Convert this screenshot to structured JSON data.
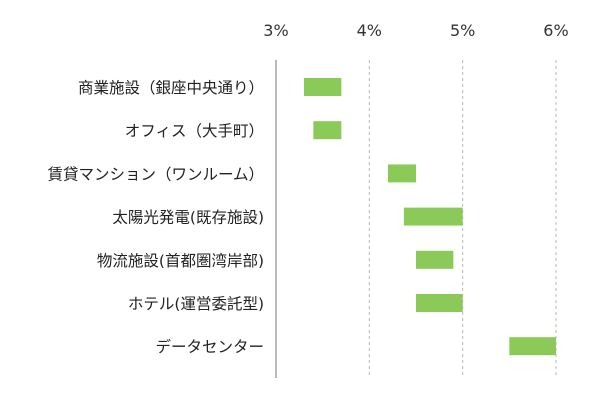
{
  "chart_data": {
    "type": "bar",
    "subtype": "floating-range-horizontal",
    "x_axis": {
      "ticks": [
        3,
        4,
        5,
        6
      ],
      "tick_labels": [
        "3%",
        "4%",
        "5%",
        "6%"
      ],
      "range": [
        3,
        6
      ],
      "grid": true,
      "position": "top"
    },
    "bar_color": "#8bca58",
    "categories": [
      "商業施設（銀座中央通り）",
      "オフィス（大手町）",
      "賃貸マンション（ワンルーム）",
      "太陽光発電(既存施設)",
      "物流施設(首都圏湾岸部)",
      "ホテル(運営委託型)",
      "データセンター"
    ],
    "ranges": [
      [
        3.3,
        3.7
      ],
      [
        3.4,
        3.7
      ],
      [
        4.2,
        4.5
      ],
      [
        4.37,
        5.0
      ],
      [
        4.5,
        4.9
      ],
      [
        4.5,
        5.0
      ],
      [
        5.5,
        6.0
      ]
    ]
  }
}
